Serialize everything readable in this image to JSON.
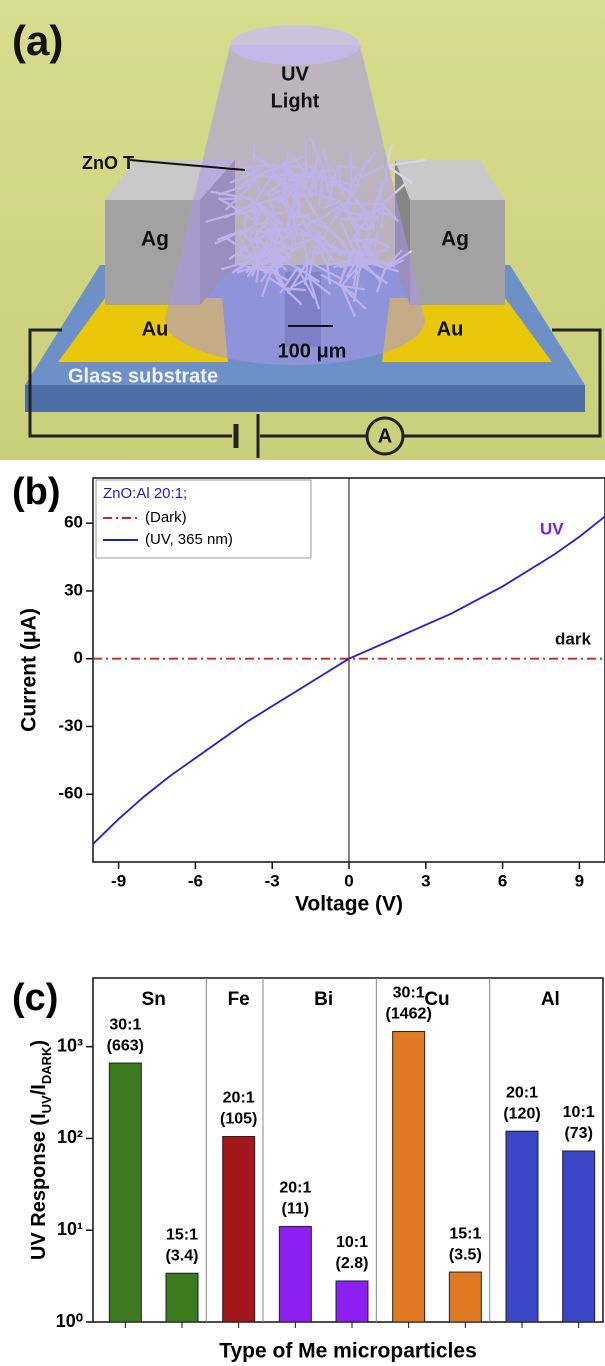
{
  "illustration": {
    "label": "(a)",
    "uv_light": [
      "UV",
      "Light"
    ],
    "zno": "ZnO T",
    "ag": [
      "Ag",
      "Ag"
    ],
    "au": [
      "Au",
      "Au"
    ],
    "gap": "100 μm",
    "substrate": "Glass substrate",
    "ammeter": "A"
  },
  "chart_data": [
    {
      "type": "line",
      "panel_label": "(b)",
      "xlabel": "Voltage (V)",
      "ylabel": "Current (μA)",
      "legend_title": "ZnO:Al 20:1;",
      "annotations": [
        "UV",
        "dark"
      ],
      "x": [
        -10,
        -9,
        -8,
        -7,
        -6,
        -5,
        -4,
        -3,
        -2,
        -1,
        0,
        1,
        2,
        3,
        4,
        5,
        6,
        7,
        8,
        9,
        10
      ],
      "series": [
        {
          "name": "(Dark)",
          "color": "#d42020",
          "dash": "dashdot",
          "values": [
            0,
            0,
            0,
            0,
            0,
            0,
            0,
            0,
            0,
            0,
            0,
            0,
            0,
            0,
            0,
            0,
            0,
            0,
            0,
            0,
            0
          ]
        },
        {
          "name": "(UV, 365 nm)",
          "color": "#2020c8",
          "values": [
            -82,
            -71,
            -61,
            -52,
            -44,
            -36,
            -28,
            -21,
            -14,
            -7,
            0,
            5,
            10,
            15,
            20,
            26,
            32,
            39,
            46,
            54,
            63
          ]
        }
      ],
      "xlim": [
        -10,
        10
      ],
      "ylim": [
        -90,
        80
      ],
      "xticks": [
        -9,
        -6,
        -3,
        0,
        3,
        6,
        9
      ],
      "yticks": [
        -60,
        -30,
        0,
        30,
        60
      ],
      "grid": false
    },
    {
      "type": "bar",
      "panel_label": "(c)",
      "xlabel": "Type of Me microparticles",
      "ylabel_parts": [
        "UV Response (I",
        "UV",
        "/I",
        "DARK",
        ")"
      ],
      "log_y": true,
      "ylim": [
        1,
        5600
      ],
      "yticks": [
        {
          "value": 1,
          "label": "10⁰"
        },
        {
          "value": 10,
          "label": "10¹"
        },
        {
          "value": 100,
          "label": "10²"
        },
        {
          "value": 1000,
          "label": "10³"
        }
      ],
      "series": [
        {
          "name": "Sn",
          "color": "#3b7a1e",
          "categories": [
            "30:1",
            "15:1"
          ],
          "values": [
            663,
            3.4
          ],
          "value_labels": [
            "(663)",
            "(3.4)"
          ]
        },
        {
          "name": "Fe",
          "color": "#a3171b",
          "categories": [
            "20:1"
          ],
          "values": [
            105
          ],
          "value_labels": [
            "(105)"
          ]
        },
        {
          "name": "Bi",
          "color": "#8c1ff0",
          "categories": [
            "20:1",
            "10:1"
          ],
          "values": [
            11,
            2.8
          ],
          "value_labels": [
            "(11)",
            "(2.8)"
          ]
        },
        {
          "name": "Cu",
          "color": "#e07a22",
          "categories": [
            "30:1",
            "15:1"
          ],
          "values": [
            1462,
            3.5
          ],
          "value_labels": [
            "(1462)",
            "(3.5)"
          ]
        },
        {
          "name": "Al",
          "color": "#3a46c6",
          "categories": [
            "20:1",
            "10:1"
          ],
          "values": [
            120,
            73
          ],
          "value_labels": [
            "(120)",
            "(73)"
          ]
        }
      ]
    }
  ]
}
